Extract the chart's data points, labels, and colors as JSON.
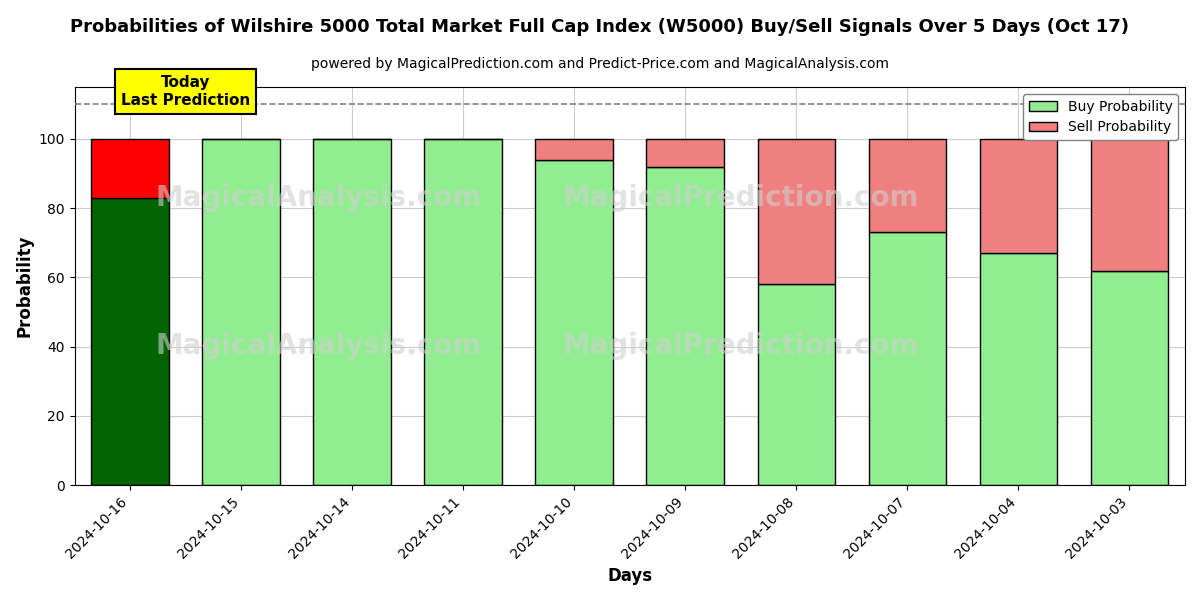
{
  "title": "Probabilities of Wilshire 5000 Total Market Full Cap Index (W5000) Buy/Sell Signals Over 5 Days (Oct 17)",
  "subtitle": "powered by MagicalPrediction.com and Predict-Price.com and MagicalAnalysis.com",
  "xlabel": "Days",
  "ylabel": "Probability",
  "dates": [
    "2024-10-16",
    "2024-10-15",
    "2024-10-14",
    "2024-10-11",
    "2024-10-10",
    "2024-10-09",
    "2024-10-08",
    "2024-10-07",
    "2024-10-04",
    "2024-10-03"
  ],
  "buy_probs": [
    83,
    100,
    100,
    100,
    94,
    92,
    58,
    73,
    67,
    62
  ],
  "sell_probs": [
    17,
    0,
    0,
    0,
    6,
    8,
    42,
    27,
    33,
    38
  ],
  "bar_colors_buy_today": "#006400",
  "bar_colors_buy_normal": "#90EE90",
  "bar_colors_sell_today": "#FF0000",
  "bar_colors_sell_normal": "#F08080",
  "bar_edge_color": "#000000",
  "bar_width": 0.7,
  "ylim": [
    0,
    115
  ],
  "yticks": [
    0,
    20,
    40,
    60,
    80,
    100
  ],
  "dashed_line_y": 110,
  "grid_color": "#cccccc",
  "background_color": "#ffffff",
  "plot_bg_color": "#ffffff",
  "watermark_texts": [
    "MagicalAnalysis.com",
    "MagicalPrediction.com"
  ],
  "watermark_color": "#d0d0d0",
  "legend_buy_label": "Buy Probability",
  "legend_sell_label": "Sell Probability",
  "today_box_text": "Today\nLast Prediction",
  "today_box_color": "#FFFF00",
  "title_fontsize": 13,
  "subtitle_fontsize": 10,
  "axis_label_fontsize": 12,
  "tick_fontsize": 10
}
